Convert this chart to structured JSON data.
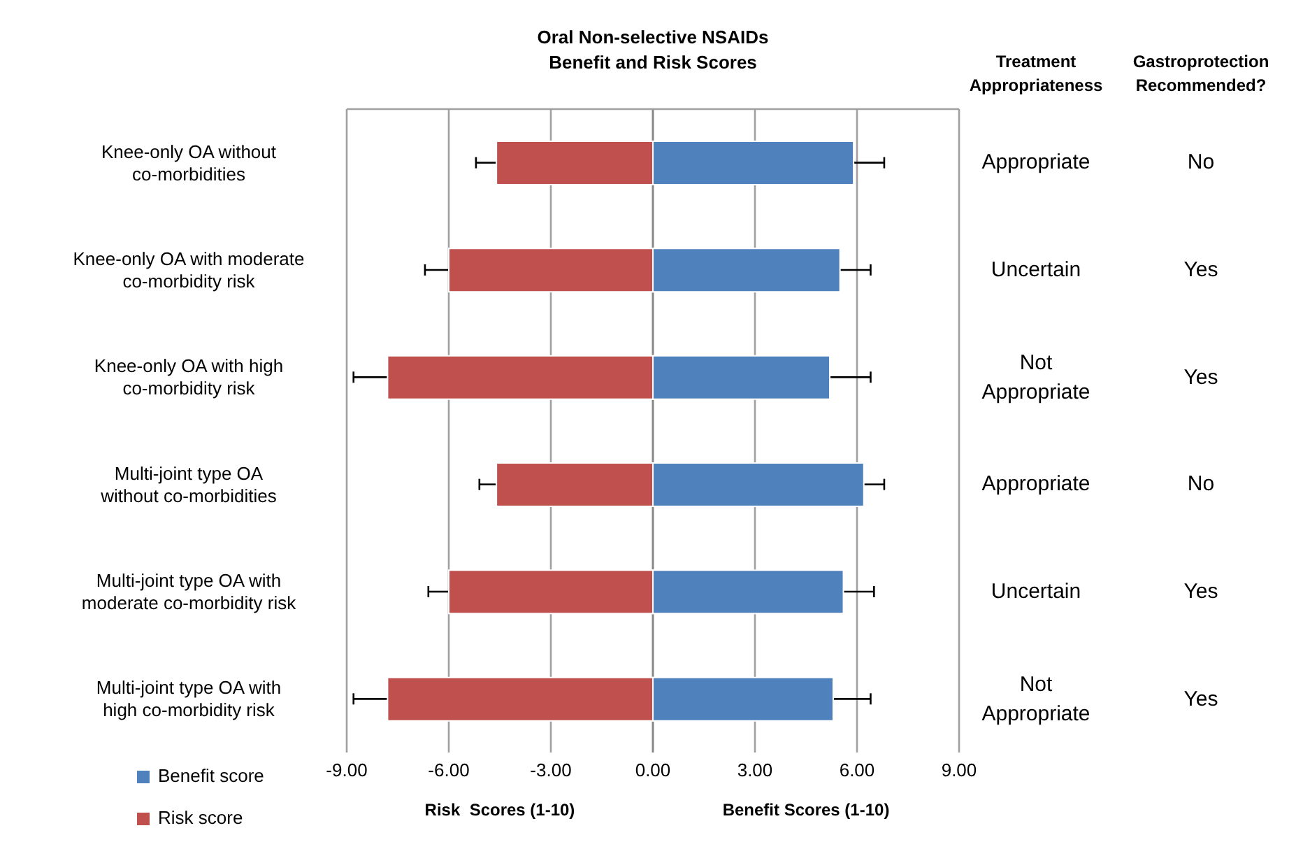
{
  "chart_data": {
    "type": "bar",
    "orientation": "horizontal",
    "stacked": true,
    "title": "Oral Non-selective NSAIDs",
    "subtitle": "Benefit and Risk Scores",
    "categories": [
      "Knee-only OA without co-morbidities",
      "Knee-only OA with moderate co-morbidity risk",
      "Knee-only OA with high co-morbidity risk",
      "Multi-joint type OA without co-morbidities",
      "Multi-joint type OA with moderate co-morbidity risk",
      "Multi-joint type OA with high co-morbidity risk"
    ],
    "series": [
      {
        "name": "Benefit score",
        "color": "#4f81bd",
        "values": [
          5.9,
          5.5,
          5.2,
          6.2,
          5.6,
          5.3
        ],
        "errors": [
          0.9,
          0.9,
          1.2,
          0.6,
          0.9,
          1.1
        ]
      },
      {
        "name": "Risk score",
        "color": "#c0504d",
        "values": [
          -4.6,
          -6.0,
          -7.8,
          -4.6,
          -6.0,
          -7.8
        ],
        "errors": [
          0.6,
          0.7,
          1.0,
          0.5,
          0.6,
          1.0
        ]
      }
    ],
    "xlim": [
      -9,
      9
    ],
    "xticks": [
      {
        "value": -9,
        "label": "-9.00"
      },
      {
        "value": -6,
        "label": "-6.00"
      },
      {
        "value": -3,
        "label": "-3.00"
      },
      {
        "value": 0,
        "label": "0.00"
      },
      {
        "value": 3,
        "label": "3.00"
      },
      {
        "value": 6,
        "label": "6.00"
      },
      {
        "value": 9,
        "label": "9.00"
      }
    ],
    "grid": "x",
    "legend": "bottom left",
    "annotations": [
      "Treatment Appropriateness",
      "Gastroprotection Recommended?",
      "Appropriate",
      "No",
      "Uncertain",
      "Yes",
      "Not Appropriate",
      "Yes",
      "Appropriate",
      "No",
      "Uncertain",
      "Yes",
      "Not Appropriate",
      "Yes",
      "Risk  Scores (1-10)",
      "Benefit Scores (1-10)"
    ]
  }
}
